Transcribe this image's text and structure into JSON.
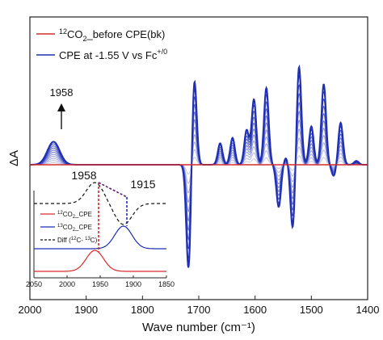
{
  "chart_data": {
    "type": "line",
    "xlabel": "Wave number (cm⁻¹)",
    "ylabel": "ΔA",
    "xlim": [
      2000,
      1400
    ],
    "x_ticks": [
      "2000",
      "1900",
      "1800",
      "1700",
      "1600",
      "1500",
      "1400"
    ],
    "colors": {
      "baseline": "#d62a2a",
      "cpe": "#1f2fb3",
      "inset_diff": "#111111"
    },
    "legend": [
      {
        "pre": "12",
        "main": "CO",
        "sub": "2",
        "rest": "_before CPE(bk)",
        "color": "#d62a2a"
      },
      {
        "main": "CPE at -1.55 V vs Fc",
        "sup": "+/0",
        "color": "#1f2fb3"
      }
    ],
    "annotations": {
      "peak_1958": "1958",
      "inset_peak_red": "1958",
      "inset_peak_blue": "1915"
    },
    "series": [
      {
        "name": "CPE at -1.55 V vs Fc+/0",
        "peaks": [
          {
            "x": 1958,
            "y": 0.3
          },
          {
            "x": 1718,
            "y": -1.4
          },
          {
            "x": 1708,
            "y": 1.15
          },
          {
            "x": 1662,
            "y": 0.28
          },
          {
            "x": 1640,
            "y": 0.35
          },
          {
            "x": 1615,
            "y": 0.45
          },
          {
            "x": 1602,
            "y": 0.85
          },
          {
            "x": 1580,
            "y": 1.0
          },
          {
            "x": 1558,
            "y": -0.55
          },
          {
            "x": 1545,
            "y": 0.1
          },
          {
            "x": 1533,
            "y": -0.85
          },
          {
            "x": 1522,
            "y": 1.3
          },
          {
            "x": 1500,
            "y": 0.5
          },
          {
            "x": 1478,
            "y": 1.05
          },
          {
            "x": 1460,
            "y": -0.15
          },
          {
            "x": 1448,
            "y": 0.55
          },
          {
            "x": 1420,
            "y": 0.05
          }
        ]
      }
    ],
    "inset": {
      "xlim": [
        2050,
        1850
      ],
      "x_ticks": [
        "2050",
        "2000",
        "1950",
        "1900",
        "1850"
      ],
      "legend": [
        {
          "pre": "12",
          "main": "CO",
          "sub": "2",
          "rest": "_CPE",
          "color": "#d62a2a",
          "dash": false
        },
        {
          "pre": "13",
          "main": "CO",
          "sub": "2",
          "rest": "_CPE",
          "color": "#1f2fb3",
          "dash": false
        },
        {
          "main": "Diff (",
          "pre2": "12",
          "mid": "C- ",
          "pre3": "13",
          "rest": "C)",
          "color": "#111111",
          "dash": true
        }
      ],
      "series": [
        {
          "name": "12CO2_CPE",
          "center": 1958,
          "width": 13,
          "height": 1.0
        },
        {
          "name": "13CO2_CPE",
          "center": 1915,
          "width": 13,
          "height": 1.0
        },
        {
          "name": "Diff (12C- 13C)",
          "pos_center": 1958,
          "neg_center": 1915,
          "width": 13
        }
      ]
    }
  }
}
